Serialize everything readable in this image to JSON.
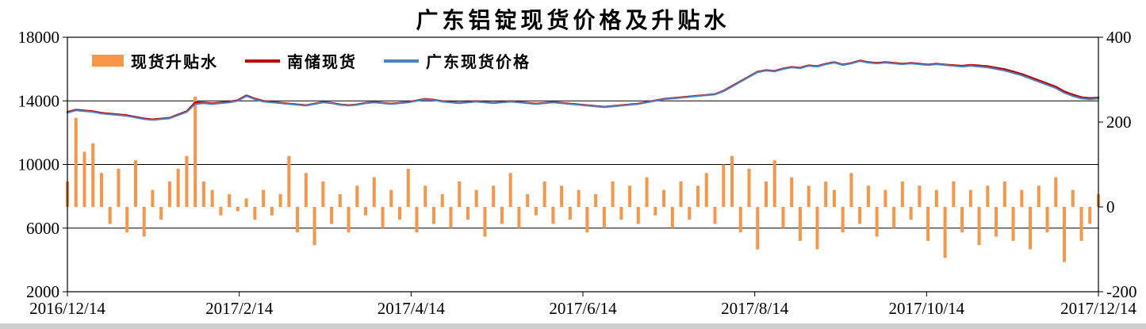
{
  "title": "广东铝锭现货价格及升贴水",
  "legend": [
    {
      "label": "现货升贴水",
      "type": "bar",
      "color": "#F79646"
    },
    {
      "label": "南储现货",
      "type": "line",
      "color": "#C00000"
    },
    {
      "label": "广东现货价格",
      "type": "line",
      "color": "#4F81BD"
    }
  ],
  "chart_data": {
    "type": "combo",
    "title": "广东铝锭现货价格及升贴水",
    "xlabel": "",
    "ylabel_left": "",
    "ylabel_right": "",
    "grid": true,
    "legend_position": "top-left-inside",
    "x_ticks": [
      "2016/12/14",
      "2017/2/14",
      "2017/4/14",
      "2017/6/14",
      "2017/8/14",
      "2017/10/14",
      "2017/12/14"
    ],
    "left_axis": {
      "min": 2000,
      "max": 18000,
      "ticks": [
        18000,
        14000,
        10000,
        6000,
        2000
      ]
    },
    "right_axis": {
      "min": -200,
      "max": 400,
      "ticks": [
        400,
        200,
        0,
        -200
      ]
    },
    "series": [
      {
        "name": "现货升贴水",
        "type": "bar",
        "axis": "right",
        "color": "#F79646",
        "values": [
          60,
          210,
          130,
          150,
          80,
          -40,
          90,
          -60,
          110,
          -70,
          40,
          -30,
          60,
          90,
          120,
          260,
          60,
          40,
          -20,
          30,
          -10,
          20,
          -30,
          40,
          -20,
          30,
          120,
          -60,
          80,
          -90,
          60,
          -40,
          30,
          -60,
          50,
          -20,
          70,
          -50,
          40,
          -30,
          90,
          -60,
          50,
          -40,
          30,
          -50,
          60,
          -30,
          40,
          -70,
          50,
          -40,
          80,
          -50,
          30,
          -20,
          60,
          -40,
          50,
          -30,
          40,
          -60,
          30,
          -50,
          60,
          -30,
          50,
          -40,
          70,
          -20,
          40,
          -50,
          60,
          -30,
          50,
          80,
          -40,
          100,
          120,
          -60,
          90,
          -100,
          60,
          110,
          -50,
          70,
          -80,
          50,
          -100,
          60,
          40,
          -60,
          80,
          -40,
          50,
          -70,
          40,
          -50,
          60,
          -30,
          50,
          -80,
          40,
          -120,
          60,
          -60,
          40,
          -90,
          50,
          -70,
          60,
          -80,
          40,
          -100,
          50,
          -60,
          70,
          -130,
          40,
          -80,
          -40,
          30
        ]
      },
      {
        "name": "南储现货",
        "type": "line",
        "axis": "left",
        "color": "#C00000",
        "values": [
          13300,
          13440,
          13390,
          13340,
          13240,
          13190,
          13140,
          13090,
          12990,
          12890,
          12830,
          12880,
          12930,
          13140,
          13340,
          13900,
          13890,
          13840,
          13890,
          13940,
          14040,
          14340,
          14140,
          13990,
          13930,
          13880,
          13820,
          13770,
          13720,
          13820,
          13920,
          13870,
          13770,
          13720,
          13770,
          13870,
          13920,
          13870,
          13820,
          13870,
          13920,
          14020,
          14120,
          14070,
          13970,
          13920,
          13870,
          13920,
          13970,
          13920,
          13870,
          13920,
          13970,
          13920,
          13870,
          13820,
          13870,
          13920,
          13870,
          13820,
          13770,
          13720,
          13670,
          13620,
          13670,
          13720,
          13770,
          13820,
          13920,
          14020,
          14120,
          14170,
          14220,
          14270,
          14320,
          14370,
          14420,
          14630,
          14930,
          15230,
          15530,
          15830,
          15930,
          15880,
          16030,
          16130,
          16080,
          16230,
          16180,
          16330,
          16430,
          16280,
          16380,
          16530,
          16430,
          16380,
          16430,
          16380,
          16330,
          16380,
          16330,
          16280,
          16330,
          16280,
          16240,
          16200,
          16260,
          16220,
          16180,
          16080,
          15990,
          15840,
          15690,
          15490,
          15290,
          15090,
          14890,
          14590,
          14390,
          14230,
          14170,
          14200
        ]
      },
      {
        "name": "广东现货价格",
        "type": "line",
        "axis": "left",
        "color": "#4F81BD",
        "values": [
          13250,
          13400,
          13350,
          13300,
          13200,
          13150,
          13100,
          13050,
          12950,
          12850,
          12800,
          12850,
          12900,
          13100,
          13300,
          13800,
          13850,
          13800,
          13850,
          13900,
          14000,
          14300,
          14100,
          13950,
          13900,
          13850,
          13800,
          13750,
          13700,
          13800,
          13900,
          13850,
          13750,
          13700,
          13750,
          13850,
          13900,
          13850,
          13800,
          13850,
          13900,
          14000,
          14100,
          14050,
          13950,
          13900,
          13850,
          13900,
          13950,
          13900,
          13850,
          13900,
          13950,
          13900,
          13850,
          13800,
          13850,
          13900,
          13850,
          13800,
          13750,
          13700,
          13650,
          13600,
          13650,
          13700,
          13750,
          13800,
          13900,
          14000,
          14100,
          14150,
          14200,
          14250,
          14300,
          14350,
          14400,
          14600,
          14900,
          15200,
          15500,
          15800,
          15900,
          15850,
          16000,
          16100,
          16050,
          16200,
          16150,
          16300,
          16400,
          16250,
          16350,
          16500,
          16400,
          16350,
          16400,
          16350,
          16300,
          16350,
          16300,
          16250,
          16300,
          16250,
          16200,
          16150,
          16200,
          16150,
          16100,
          16000,
          15900,
          15750,
          15600,
          15400,
          15200,
          15000,
          14800,
          14500,
          14300,
          14150,
          14100,
          14150
        ]
      }
    ]
  }
}
